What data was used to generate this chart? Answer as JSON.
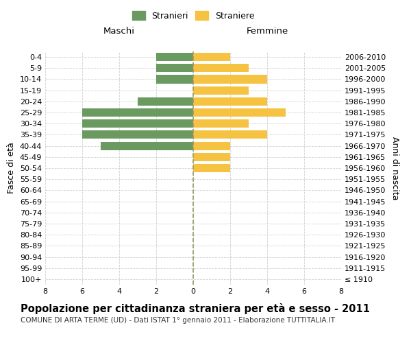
{
  "age_groups": [
    "100+",
    "95-99",
    "90-94",
    "85-89",
    "80-84",
    "75-79",
    "70-74",
    "65-69",
    "60-64",
    "55-59",
    "50-54",
    "45-49",
    "40-44",
    "35-39",
    "30-34",
    "25-29",
    "20-24",
    "15-19",
    "10-14",
    "5-9",
    "0-4"
  ],
  "birth_years": [
    "≤ 1910",
    "1911-1915",
    "1916-1920",
    "1921-1925",
    "1926-1930",
    "1931-1935",
    "1936-1940",
    "1941-1945",
    "1946-1950",
    "1951-1955",
    "1956-1960",
    "1961-1965",
    "1966-1970",
    "1971-1975",
    "1976-1980",
    "1981-1985",
    "1986-1990",
    "1991-1995",
    "1996-2000",
    "2001-2005",
    "2006-2010"
  ],
  "maschi": [
    0,
    0,
    0,
    0,
    0,
    0,
    0,
    0,
    0,
    0,
    0,
    0,
    5,
    6,
    6,
    6,
    3,
    0,
    2,
    2,
    2
  ],
  "femmine": [
    0,
    0,
    0,
    0,
    0,
    0,
    0,
    0,
    0,
    0,
    2,
    2,
    2,
    4,
    3,
    5,
    4,
    3,
    4,
    3,
    2
  ],
  "male_color": "#6a9a5f",
  "female_color": "#f5c242",
  "background_color": "#ffffff",
  "grid_color": "#cccccc",
  "title": "Popolazione per cittadinanza straniera per età e sesso - 2011",
  "subtitle": "COMUNE DI ARTA TERME (UD) - Dati ISTAT 1° gennaio 2011 - Elaborazione TUTTITALIA.IT",
  "ylabel_left": "Fasce di età",
  "ylabel_right": "Anni di nascita",
  "label_maschi": "Maschi",
  "label_femmine": "Femmine",
  "legend_stranieri": "Stranieri",
  "legend_straniere": "Straniere",
  "xlim": 8,
  "bar_height": 0.75,
  "title_fontsize": 10.5,
  "subtitle_fontsize": 7.5,
  "axis_label_fontsize": 9,
  "tick_fontsize": 8
}
